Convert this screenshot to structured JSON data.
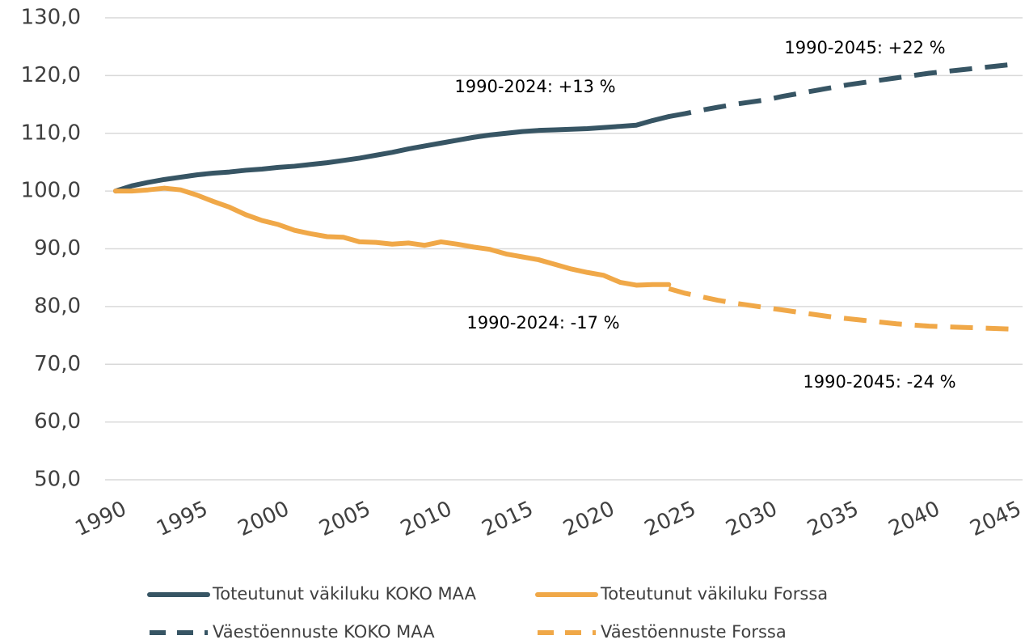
{
  "chart_data": {
    "type": "line",
    "x": [
      1990,
      1991,
      1992,
      1993,
      1994,
      1995,
      1996,
      1997,
      1998,
      1999,
      2000,
      2001,
      2002,
      2003,
      2004,
      2005,
      2006,
      2007,
      2008,
      2009,
      2010,
      2011,
      2012,
      2013,
      2014,
      2015,
      2016,
      2017,
      2018,
      2019,
      2020,
      2021,
      2022,
      2023,
      2024,
      2025,
      2026,
      2027,
      2028,
      2029,
      2030,
      2031,
      2032,
      2033,
      2034,
      2035,
      2036,
      2037,
      2038,
      2039,
      2040,
      2041,
      2042,
      2043,
      2044,
      2045
    ],
    "series": [
      {
        "name": "Toteutunut väkiluku KOKO MAA",
        "color": "#375564",
        "style": "solid",
        "values": [
          100,
          100.9,
          101.5,
          102.0,
          102.4,
          102.8,
          103.1,
          103.3,
          103.6,
          103.8,
          104.1,
          104.3,
          104.6,
          104.9,
          105.3,
          105.7,
          106.2,
          106.7,
          107.3,
          107.8,
          108.3,
          108.8,
          109.3,
          109.7,
          110.0,
          110.3,
          110.5,
          110.6,
          110.7,
          110.8,
          111.0,
          111.2,
          111.4,
          112.2,
          112.9,
          null,
          null,
          null,
          null,
          null,
          null,
          null,
          null,
          null,
          null,
          null,
          null,
          null,
          null,
          null,
          null,
          null,
          null,
          null,
          null,
          null
        ]
      },
      {
        "name": "Toteutunut väkiluku Forssa",
        "color": "#f0a848",
        "style": "solid",
        "values": [
          100,
          100.0,
          100.2,
          100.5,
          100.2,
          99.3,
          98.2,
          97.2,
          95.9,
          94.9,
          94.2,
          93.2,
          92.6,
          92.1,
          92.0,
          91.2,
          91.1,
          90.8,
          91.0,
          90.6,
          91.2,
          90.8,
          90.3,
          89.9,
          89.1,
          88.6,
          88.1,
          87.3,
          86.5,
          85.9,
          85.4,
          84.2,
          83.7,
          83.8,
          83.8,
          null,
          null,
          null,
          null,
          null,
          null,
          null,
          null,
          null,
          null,
          null,
          null,
          null,
          null,
          null,
          null,
          null,
          null,
          null,
          null,
          null
        ]
      },
      {
        "name": "Väestöennuste KOKO MAA",
        "color": "#375564",
        "style": "dashed",
        "values": [
          null,
          null,
          null,
          null,
          null,
          null,
          null,
          null,
          null,
          null,
          null,
          null,
          null,
          null,
          null,
          null,
          null,
          null,
          null,
          null,
          null,
          null,
          null,
          null,
          null,
          null,
          null,
          null,
          null,
          null,
          null,
          null,
          null,
          null,
          112.9,
          113.4,
          114.0,
          114.5,
          115.0,
          115.4,
          115.8,
          116.4,
          116.9,
          117.4,
          117.9,
          118.4,
          118.8,
          119.2,
          119.6,
          120.0,
          120.4,
          120.7,
          121.0,
          121.3,
          121.6,
          121.9
        ]
      },
      {
        "name": "Väestöennuste Forssa",
        "color": "#f0a848",
        "style": "dashed",
        "values": [
          null,
          null,
          null,
          null,
          null,
          null,
          null,
          null,
          null,
          null,
          null,
          null,
          null,
          null,
          null,
          null,
          null,
          null,
          null,
          null,
          null,
          null,
          null,
          null,
          null,
          null,
          null,
          null,
          null,
          null,
          null,
          null,
          null,
          null,
          83.1,
          82.3,
          81.7,
          81.1,
          80.6,
          80.2,
          79.8,
          79.4,
          79.0,
          78.6,
          78.2,
          77.9,
          77.6,
          77.3,
          77.0,
          76.8,
          76.6,
          76.5,
          76.4,
          76.3,
          76.2,
          76.1
        ]
      }
    ],
    "xlim": [
      1990,
      2045
    ],
    "xticks": [
      1990,
      1995,
      2000,
      2005,
      2010,
      2015,
      2020,
      2025,
      2030,
      2035,
      2040,
      2045
    ],
    "ylim": [
      50,
      130
    ],
    "yticks": [
      {
        "value": 50,
        "label": "50,0"
      },
      {
        "value": 60,
        "label": "60,0"
      },
      {
        "value": 70,
        "label": "70,0"
      },
      {
        "value": 80,
        "label": "80,0"
      },
      {
        "value": 90,
        "label": "90,0"
      },
      {
        "value": 100,
        "label": "100,0"
      },
      {
        "value": 110,
        "label": "110,0"
      },
      {
        "value": 120,
        "label": "120,0"
      },
      {
        "value": 130,
        "label": "130,0"
      }
    ],
    "grid": true,
    "annotations": [
      "1990-2045: +22 %",
      "1990-2024: +13 %",
      "1990-2024: -17 %",
      "1990-2045: -24 %"
    ]
  }
}
